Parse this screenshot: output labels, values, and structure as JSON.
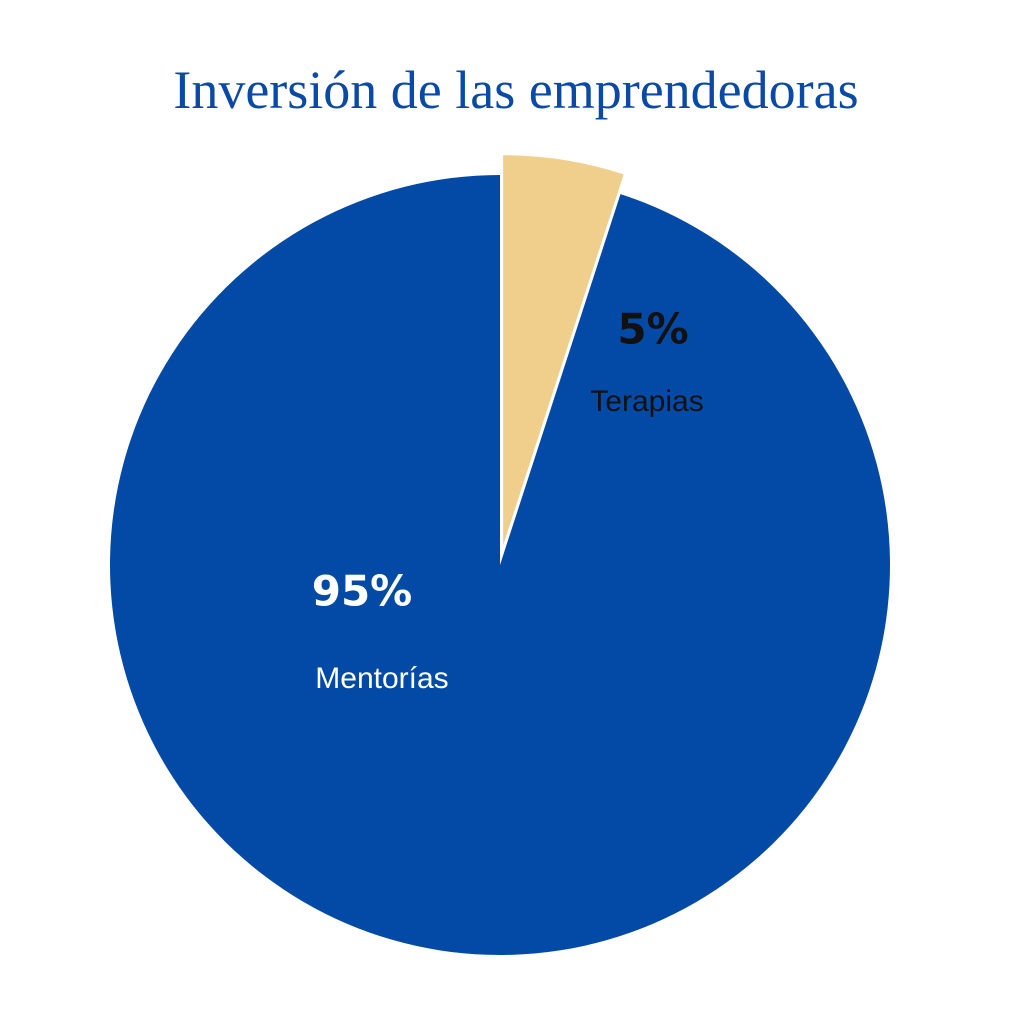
{
  "chart_data": {
    "type": "pie",
    "title": "Inversión de las emprendedoras",
    "categories": [
      "Terapias",
      "Mentorías"
    ],
    "values": [
      5,
      95
    ],
    "value_labels": [
      "5%",
      "95%"
    ],
    "colors": [
      "#f0cf8c",
      "#034aa6"
    ]
  }
}
